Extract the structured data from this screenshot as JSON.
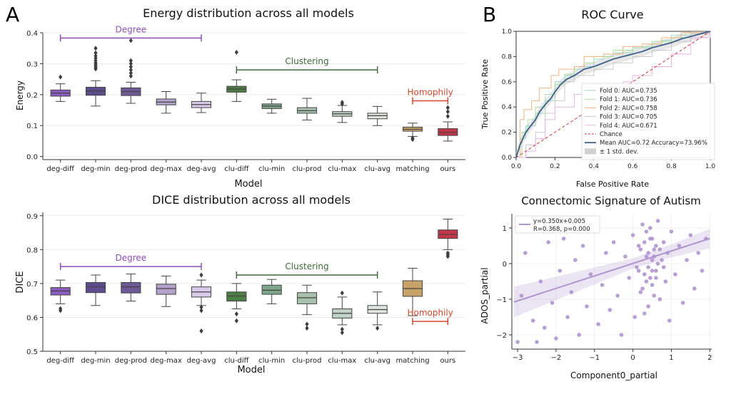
{
  "panel_labels": {
    "a": "A",
    "b": "B"
  },
  "chart_data": [
    {
      "type": "box",
      "title": "Energy distribution across all models",
      "xlabel": "Model",
      "ylabel": "Energy",
      "ylim": [
        -0.01,
        0.4
      ],
      "yticks": [
        0.0,
        0.1,
        0.2,
        0.3,
        0.4
      ],
      "tick_labels": [
        "0.0",
        "0.1",
        "0.2",
        "0.3",
        "0.4"
      ],
      "categories": [
        "deg-diff",
        "deg-min",
        "deg-prod",
        "deg-max",
        "deg-avg",
        "clu-diff",
        "clu-min",
        "clu-prod",
        "clu-max",
        "clu-avg",
        "matching",
        "ours"
      ],
      "colors": [
        "#8a5cc0",
        "#5e4c8e",
        "#6e5895",
        "#b4a2cc",
        "#d9c9ea",
        "#4e7d43",
        "#7ea688",
        "#a7c1ac",
        "#c0d3c4",
        "#dde7df",
        "#c9a268",
        "#c23649"
      ],
      "boxes": [
        {
          "whislo": 0.178,
          "q1": 0.195,
          "med": 0.205,
          "q3": 0.215,
          "whishi": 0.235,
          "fliers": [
            0.257
          ]
        },
        {
          "whislo": 0.163,
          "q1": 0.198,
          "med": 0.212,
          "q3": 0.224,
          "whishi": 0.245,
          "fliers": [
            0.283,
            0.288,
            0.293,
            0.298,
            0.303,
            0.31,
            0.318,
            0.325,
            0.335,
            0.35
          ]
        },
        {
          "whislo": 0.172,
          "q1": 0.197,
          "med": 0.21,
          "q3": 0.222,
          "whishi": 0.24,
          "fliers": [
            0.26,
            0.27,
            0.28,
            0.29,
            0.3,
            0.31,
            0.375
          ]
        },
        {
          "whislo": 0.14,
          "q1": 0.167,
          "med": 0.176,
          "q3": 0.186,
          "whishi": 0.21,
          "fliers": []
        },
        {
          "whislo": 0.142,
          "q1": 0.158,
          "med": 0.168,
          "q3": 0.178,
          "whishi": 0.205,
          "fliers": []
        },
        {
          "whislo": 0.178,
          "q1": 0.208,
          "med": 0.218,
          "q3": 0.227,
          "whishi": 0.248,
          "fliers": [
            0.337
          ]
        },
        {
          "whislo": 0.14,
          "q1": 0.155,
          "med": 0.163,
          "q3": 0.17,
          "whishi": 0.185,
          "fliers": []
        },
        {
          "whislo": 0.118,
          "q1": 0.14,
          "med": 0.148,
          "q3": 0.158,
          "whishi": 0.188,
          "fliers": []
        },
        {
          "whislo": 0.11,
          "q1": 0.13,
          "med": 0.138,
          "q3": 0.145,
          "whishi": 0.165,
          "fliers": [
            0.17,
            0.175
          ]
        },
        {
          "whislo": 0.1,
          "q1": 0.122,
          "med": 0.132,
          "q3": 0.14,
          "whishi": 0.162,
          "fliers": []
        },
        {
          "whislo": 0.065,
          "q1": 0.082,
          "med": 0.088,
          "q3": 0.095,
          "whishi": 0.108,
          "fliers": [
            0.055,
            0.06
          ]
        },
        {
          "whislo": 0.05,
          "q1": 0.068,
          "med": 0.078,
          "q3": 0.09,
          "whishi": 0.112,
          "fliers": [
            0.13,
            0.145,
            0.158
          ]
        }
      ],
      "annotations": [
        {
          "text": "Degree",
          "x0": 0,
          "x1": 4,
          "y": 0.383,
          "color": "#8e4dbd"
        },
        {
          "text": "Clustering",
          "x0": 5,
          "x1": 9,
          "y": 0.28,
          "color": "#3e6b3a"
        },
        {
          "text": "Homophily",
          "x0": 10,
          "x1": 11,
          "y": 0.18,
          "color": "#d9452b"
        }
      ]
    },
    {
      "type": "box",
      "title": "DICE distribution across all models",
      "xlabel": "Model",
      "ylabel": "DICE",
      "ylim": [
        0.5,
        0.91
      ],
      "yticks": [
        0.5,
        0.6,
        0.7,
        0.8,
        0.9
      ],
      "tick_labels": [
        "0.5",
        "0.6",
        "0.7",
        "0.8",
        "0.9"
      ],
      "categories": [
        "deg-diff",
        "deg-min",
        "deg-prod",
        "deg-max",
        "deg-avg",
        "clu-diff",
        "clu-min",
        "clu-prod",
        "clu-max",
        "clu-avg",
        "matching",
        "ours"
      ],
      "colors": [
        "#8a5cc0",
        "#5e4c8e",
        "#6e5895",
        "#b4a2cc",
        "#d9c9ea",
        "#4e7d43",
        "#7ea688",
        "#a7c1ac",
        "#c0d3c4",
        "#dde7df",
        "#c9a268",
        "#c23649"
      ],
      "boxes": [
        {
          "whislo": 0.64,
          "q1": 0.666,
          "med": 0.678,
          "q3": 0.688,
          "whishi": 0.71,
          "fliers": [
            0.62,
            0.626
          ]
        },
        {
          "whislo": 0.635,
          "q1": 0.673,
          "med": 0.69,
          "q3": 0.703,
          "whishi": 0.725,
          "fliers": []
        },
        {
          "whislo": 0.648,
          "q1": 0.672,
          "med": 0.69,
          "q3": 0.703,
          "whishi": 0.728,
          "fliers": []
        },
        {
          "whislo": 0.632,
          "q1": 0.668,
          "med": 0.685,
          "q3": 0.698,
          "whishi": 0.722,
          "fliers": []
        },
        {
          "whislo": 0.635,
          "q1": 0.66,
          "med": 0.675,
          "q3": 0.69,
          "whishi": 0.71,
          "fliers": [
            0.56,
            0.62,
            0.63,
            0.725
          ]
        },
        {
          "whislo": 0.625,
          "q1": 0.648,
          "med": 0.663,
          "q3": 0.675,
          "whishi": 0.7,
          "fliers": [
            0.59,
            0.61
          ]
        },
        {
          "whislo": 0.64,
          "q1": 0.668,
          "med": 0.68,
          "q3": 0.695,
          "whishi": 0.712,
          "fliers": []
        },
        {
          "whislo": 0.608,
          "q1": 0.64,
          "med": 0.658,
          "q3": 0.673,
          "whishi": 0.695,
          "fliers": [
            0.568,
            0.58
          ]
        },
        {
          "whislo": 0.578,
          "q1": 0.598,
          "med": 0.612,
          "q3": 0.625,
          "whishi": 0.66,
          "fliers": [
            0.555,
            0.565,
            0.672
          ]
        },
        {
          "whislo": 0.578,
          "q1": 0.612,
          "med": 0.623,
          "q3": 0.635,
          "whishi": 0.675,
          "fliers": [
            0.568
          ]
        },
        {
          "whislo": 0.605,
          "q1": 0.662,
          "med": 0.685,
          "q3": 0.708,
          "whishi": 0.745,
          "fliers": []
        },
        {
          "whislo": 0.8,
          "q1": 0.833,
          "med": 0.845,
          "q3": 0.858,
          "whishi": 0.89,
          "fliers": [
            0.78,
            0.785,
            0.79
          ]
        }
      ],
      "annotations": [
        {
          "text": "Degree",
          "x0": 0,
          "x1": 4,
          "y": 0.75,
          "color": "#8e4dbd"
        },
        {
          "text": "Clustering",
          "x0": 5,
          "x1": 9,
          "y": 0.725,
          "color": "#3e6b3a"
        },
        {
          "text": "Homophily",
          "x0": 10,
          "x1": 11,
          "y": 0.588,
          "color": "#d9452b"
        }
      ]
    },
    {
      "type": "line",
      "title": "ROC Curve",
      "xlabel": "False Positive Rate",
      "ylabel": "True Positive Rate",
      "xlim": [
        0,
        1
      ],
      "ylim": [
        0,
        1
      ],
      "xticks": [
        "0.0",
        "0.2",
        "0.4",
        "0.6",
        "0.8",
        "1.0"
      ],
      "yticks": [
        "0.0",
        "0.2",
        "0.4",
        "0.6",
        "0.8",
        "1.0"
      ],
      "series": [
        {
          "name": "Fold 0: AUC=0.735",
          "color": "#9fd8c8",
          "x": [
            0,
            0.02,
            0.05,
            0.1,
            0.15,
            0.2,
            0.25,
            0.3,
            0.35,
            0.4,
            0.45,
            0.5,
            0.6,
            0.7,
            0.75,
            0.8,
            0.9,
            1.0
          ],
          "y": [
            0,
            0.15,
            0.25,
            0.35,
            0.45,
            0.6,
            0.65,
            0.7,
            0.72,
            0.78,
            0.8,
            0.83,
            0.87,
            0.9,
            0.93,
            0.97,
            0.99,
            1.0
          ]
        },
        {
          "name": "Fold 1: AUC=0.736",
          "color": "#a8e0a0",
          "x": [
            0,
            0.03,
            0.06,
            0.1,
            0.15,
            0.2,
            0.25,
            0.3,
            0.35,
            0.4,
            0.5,
            0.6,
            0.7,
            0.8,
            0.9,
            1.0
          ],
          "y": [
            0,
            0.2,
            0.3,
            0.4,
            0.5,
            0.58,
            0.66,
            0.72,
            0.75,
            0.8,
            0.85,
            0.88,
            0.92,
            0.95,
            0.99,
            1.0
          ]
        },
        {
          "name": "Fold 2: AUC=0.758",
          "color": "#f0b380",
          "x": [
            0,
            0.02,
            0.04,
            0.08,
            0.12,
            0.18,
            0.22,
            0.3,
            0.35,
            0.45,
            0.55,
            0.65,
            0.75,
            0.85,
            1.0
          ],
          "y": [
            0,
            0.3,
            0.38,
            0.45,
            0.55,
            0.65,
            0.7,
            0.72,
            0.8,
            0.82,
            0.88,
            0.9,
            0.95,
            0.99,
            1.0
          ]
        },
        {
          "name": "Fold 3: AUC=0.705",
          "color": "#c8c8c8",
          "x": [
            0,
            0.05,
            0.1,
            0.15,
            0.2,
            0.25,
            0.3,
            0.4,
            0.5,
            0.6,
            0.7,
            0.8,
            0.9,
            1.0
          ],
          "y": [
            0,
            0.1,
            0.2,
            0.35,
            0.45,
            0.6,
            0.65,
            0.7,
            0.75,
            0.8,
            0.85,
            0.92,
            0.98,
            1.0
          ]
        },
        {
          "name": "Fold 4: AUC=0.671",
          "color": "#e8b4e8",
          "x": [
            0,
            0.05,
            0.1,
            0.15,
            0.2,
            0.3,
            0.4,
            0.5,
            0.55,
            0.6,
            0.7,
            0.8,
            0.9,
            1.0
          ],
          "y": [
            0,
            0.05,
            0.15,
            0.3,
            0.4,
            0.5,
            0.55,
            0.55,
            0.6,
            0.65,
            0.72,
            0.82,
            0.95,
            1.0
          ]
        }
      ],
      "chance": {
        "name": "Chance",
        "color": "#e03030"
      },
      "mean": {
        "name": "Mean AUC=0.72 Accuracy=73.96%",
        "color": "#3b5f8a",
        "x": [
          0,
          0.02,
          0.05,
          0.08,
          0.1,
          0.12,
          0.15,
          0.18,
          0.2,
          0.23,
          0.26,
          0.3,
          0.35,
          0.4,
          0.45,
          0.5,
          0.55,
          0.6,
          0.65,
          0.7,
          0.75,
          0.8,
          0.85,
          0.9,
          0.95,
          1.0
        ],
        "y": [
          0,
          0.1,
          0.2,
          0.26,
          0.3,
          0.36,
          0.42,
          0.47,
          0.52,
          0.58,
          0.62,
          0.65,
          0.7,
          0.72,
          0.75,
          0.78,
          0.8,
          0.82,
          0.84,
          0.87,
          0.89,
          0.91,
          0.94,
          0.96,
          0.98,
          1.0
        ]
      },
      "std_band": {
        "name": "± 1 std. dev.",
        "color": "#d0d0d0",
        "spread": 0.04
      }
    },
    {
      "type": "scatter",
      "title": "Connectomic Signature of Autism",
      "xlabel": "Component0_partial",
      "ylabel": "ADOS_partial",
      "xlim": [
        -3.15,
        2.05
      ],
      "ylim": [
        -2.4,
        1.4
      ],
      "xticks": [
        "−3",
        "−2",
        "−1",
        "0",
        "1",
        "2"
      ],
      "yticks": [
        "−2",
        "−1",
        "0",
        "1"
      ],
      "color": "#b094d0",
      "legend_line1": "y=0.350x+0.005",
      "legend_line2": "R=0.368, p=0.000",
      "fit": {
        "slope": 0.35,
        "intercept": 0.005
      },
      "points": [
        [
          -3.0,
          -2.2
        ],
        [
          -2.9,
          -0.9
        ],
        [
          -2.8,
          0.3
        ],
        [
          -2.6,
          -1.6
        ],
        [
          -2.5,
          -2.2
        ],
        [
          -2.4,
          -0.5
        ],
        [
          -2.3,
          -1.8
        ],
        [
          -2.2,
          0.6
        ],
        [
          -2.1,
          -1.1
        ],
        [
          -2.0,
          -2.1
        ],
        [
          -1.9,
          -0.2
        ],
        [
          -1.8,
          0.7
        ],
        [
          -1.7,
          -1.5
        ],
        [
          -1.6,
          -0.8
        ],
        [
          -1.5,
          0.1
        ],
        [
          -1.4,
          -2.0
        ],
        [
          -1.3,
          0.5
        ],
        [
          -1.2,
          -1.2
        ],
        [
          -1.1,
          -0.3
        ],
        [
          -1.0,
          0.9
        ],
        [
          -0.9,
          -1.7
        ],
        [
          -0.8,
          -0.6
        ],
        [
          -0.7,
          0.3
        ],
        [
          -0.6,
          -1.3
        ],
        [
          -0.5,
          0.6
        ],
        [
          -0.4,
          -0.9
        ],
        [
          -0.3,
          -2.0
        ],
        [
          -0.2,
          0.2
        ],
        [
          -0.1,
          -0.4
        ],
        [
          0.0,
          0.8
        ],
        [
          0.05,
          -1.5
        ],
        [
          0.1,
          -0.1
        ],
        [
          0.15,
          0.5
        ],
        [
          0.2,
          -0.8
        ],
        [
          0.25,
          1.1
        ],
        [
          0.3,
          -0.3
        ],
        [
          0.35,
          0.2
        ],
        [
          0.4,
          -1.2
        ],
        [
          0.45,
          0.7
        ],
        [
          0.5,
          -0.6
        ],
        [
          0.55,
          0.4
        ],
        [
          0.6,
          -0.2
        ],
        [
          0.65,
          1.2
        ],
        [
          0.7,
          -1.0
        ],
        [
          0.75,
          0.1
        ],
        [
          0.8,
          0.6
        ],
        [
          0.85,
          -0.5
        ],
        [
          0.9,
          0.3
        ],
        [
          0.95,
          -1.6
        ],
        [
          1.0,
          0.9
        ],
        [
          1.1,
          -0.3
        ],
        [
          1.2,
          0.5
        ],
        [
          1.3,
          -1.1
        ],
        [
          1.4,
          0.1
        ],
        [
          1.5,
          0.8
        ],
        [
          1.6,
          -0.7
        ],
        [
          1.7,
          0.3
        ],
        [
          1.8,
          -0.2
        ],
        [
          1.9,
          0.7
        ],
        [
          0.3,
          0.6
        ],
        [
          0.4,
          0.3
        ],
        [
          0.5,
          0.1
        ],
        [
          0.45,
          -0.4
        ],
        [
          0.35,
          0.9
        ],
        [
          0.55,
          -0.9
        ],
        [
          0.6,
          0.5
        ],
        [
          0.25,
          -0.7
        ],
        [
          0.7,
          0.4
        ],
        [
          0.15,
          -0.2
        ],
        [
          0.8,
          -0.1
        ],
        [
          0.5,
          0.7
        ],
        [
          0.4,
          -0.1
        ],
        [
          0.3,
          -1.4
        ],
        [
          0.65,
          0.0
        ],
        [
          0.2,
          0.4
        ],
        [
          0.45,
          1.0
        ],
        [
          0.55,
          0.2
        ],
        [
          0.35,
          -0.5
        ],
        [
          0.6,
          -0.4
        ],
        [
          0.5,
          -0.2
        ]
      ]
    }
  ]
}
